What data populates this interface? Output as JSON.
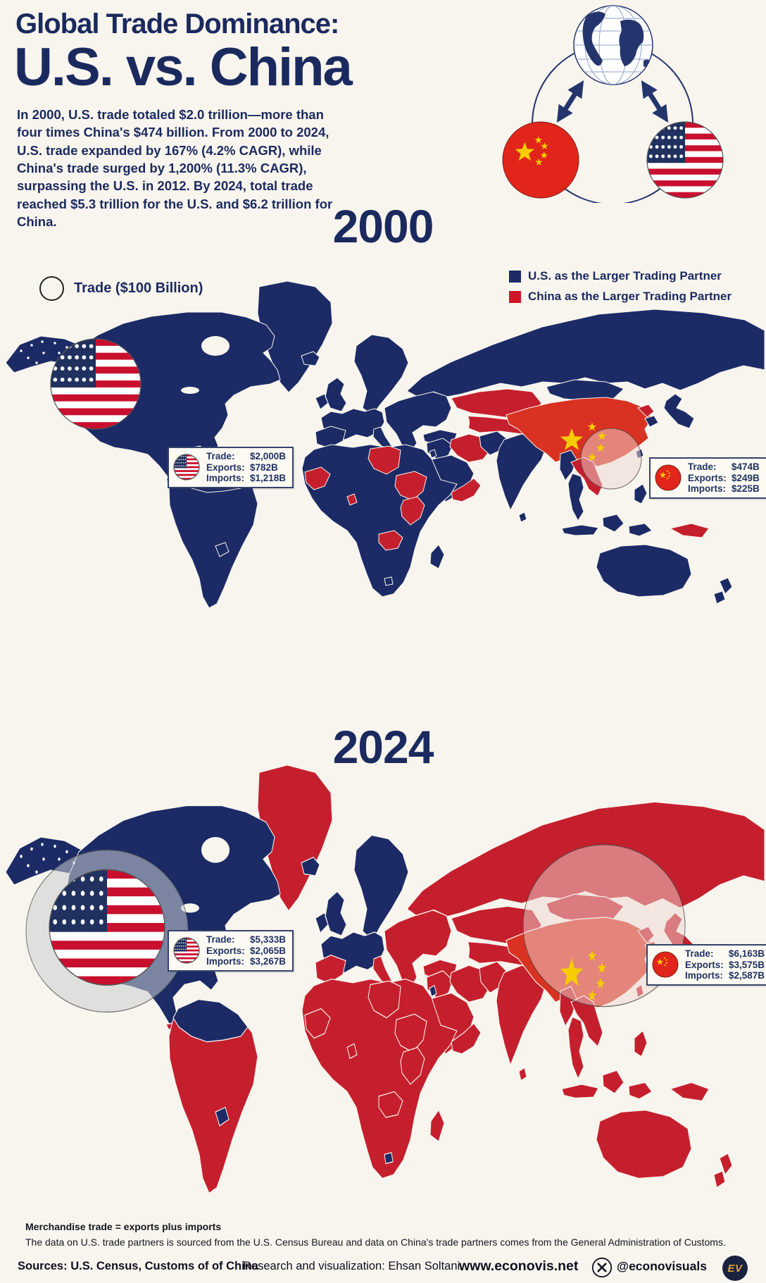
{
  "header": {
    "title_line1": "Global Trade Dominance:",
    "title_line2": "U.S. vs. China",
    "intro": "In 2000, U.S. trade totaled $2.0 trillion—more than four times China's $474 billion. From 2000 to 2024, U.S. trade expanded by 167% (4.2% CAGR), while China's trade surged by 1,200% (11.3% CAGR), surpassing the U.S. in 2012. By 2024, total trade reached $5.3 trillion for the U.S. and $6.2 trillion for China."
  },
  "legend": {
    "bubble_label": "Trade ($100 Billion)",
    "us_label": "U.S. as the Larger Trading Partner",
    "china_label": "China as the Larger Trading Partner"
  },
  "stat_labels": {
    "trade": "Trade:",
    "exports": "Exports:",
    "imports": "Imports:"
  },
  "map2000": {
    "year": "2000",
    "base": "us",
    "us_box": {
      "trade": "$2,000B",
      "exports": "$782B",
      "imports": "$1,218B"
    },
    "china_box": {
      "trade": "$474B",
      "exports": "$249B",
      "imports": "$225B"
    },
    "china_partner_regions": [
      "china",
      "kazakhstan",
      "central_asia",
      "iran",
      "libya",
      "sudan",
      "east_africa",
      "zambia",
      "mauritania",
      "benin",
      "yemen_oman",
      "indochina",
      "north_korea",
      "png"
    ],
    "us_partner_regions": [],
    "bubble_us_r": 64,
    "bubble_china_r": 43
  },
  "map2024": {
    "year": "2024",
    "base": "china",
    "us_box": {
      "trade": "$5,333B",
      "exports": "$2,065B",
      "imports": "$3,267B"
    },
    "china_box": {
      "trade": "$6,163B",
      "exports": "$3,575B",
      "imports": "$2,587B"
    },
    "china_partner_regions": [
      "china"
    ],
    "us_partner_regions": [
      "northamerica",
      "alaska",
      "nsa",
      "paraguay",
      "cuba_not",
      "lesotho",
      "israel",
      "iceland",
      "uk_ireland",
      "scandinavia",
      "west_europe"
    ],
    "bubble_us_r": 115,
    "bubble_china_r": 115
  },
  "footnotes": {
    "line1": "Merchandise trade = exports plus imports",
    "line2": "The data on U.S. trade partners is sourced from the U.S. Census Bureau and data on China's trade partners comes from the General Administration of Customs."
  },
  "footer": {
    "sources": "Sources: U.S. Census, Customs of of China",
    "research": "Research and visualization: Ehsan Soltani",
    "site": "www.econovis.net",
    "handle": "@econovisuals",
    "logo_text": "EV"
  },
  "colors": {
    "background": "#f8f5ee",
    "navy": "#1c2b66",
    "red": "#c51f2d",
    "china_bright": "#d93222",
    "flag_red": "#c8102e",
    "flag_gold": "#f7cc00",
    "title_navy": "#1b2a5e",
    "gray_bubble": "#cbcdd2",
    "pink_bubble": "#eed8d2",
    "gold": "#d9a33c"
  }
}
